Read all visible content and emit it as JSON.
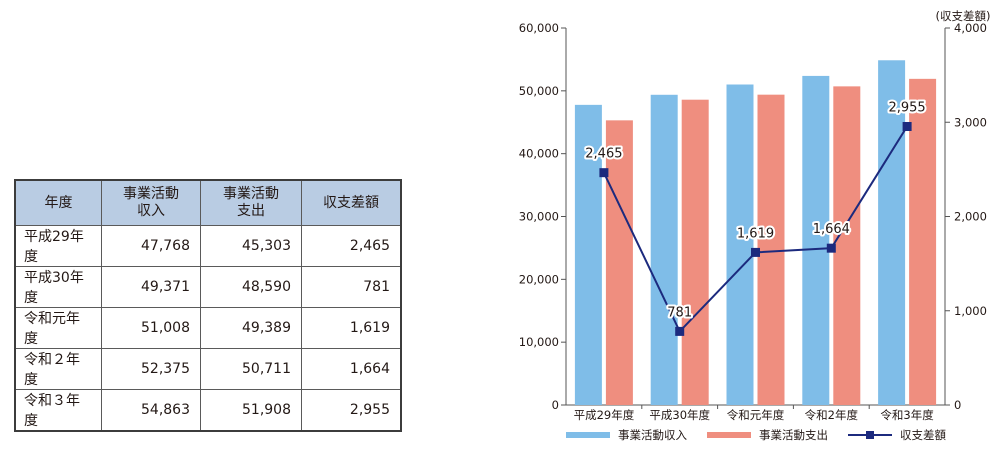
{
  "table": {
    "headers": [
      "年度",
      "事業活動\n収入",
      "事業活動\n支出",
      "収支差額"
    ],
    "rows": [
      [
        "平成29年度",
        "47,768",
        "45,303",
        "2,465"
      ],
      [
        "平成30年度",
        "49,371",
        "48,590",
        "781"
      ],
      [
        "令和元年度",
        "51,008",
        "49,389",
        "1,619"
      ],
      [
        "令和２年度",
        "52,375",
        "50,711",
        "1,664"
      ],
      [
        "令和３年度",
        "54,863",
        "51,908",
        "2,955"
      ]
    ]
  },
  "chart_data": {
    "type": "bar",
    "categories": [
      "平成29年度",
      "平成30年度",
      "令和元年度",
      "令和2年度",
      "令和3年度"
    ],
    "series": [
      {
        "name": "事業活動収入",
        "type": "bar",
        "axis": "left",
        "color": "#7fbde8",
        "values": [
          47768,
          49371,
          51008,
          52375,
          54863
        ]
      },
      {
        "name": "事業活動支出",
        "type": "bar",
        "axis": "left",
        "color": "#ef8e7f",
        "values": [
          45303,
          48590,
          49389,
          50711,
          51908
        ]
      },
      {
        "name": "収支差額",
        "type": "line",
        "axis": "right",
        "color": "#1c2a7e",
        "values": [
          2465,
          781,
          1619,
          1664,
          2955
        ]
      }
    ],
    "left_axis": {
      "ylim": [
        0,
        60000
      ],
      "ticks": [
        "0",
        "10,000",
        "20,000",
        "30,000",
        "40,000",
        "50,000",
        "60,000"
      ]
    },
    "right_axis": {
      "ylim": [
        0,
        4000
      ],
      "ticks": [
        "0",
        "1,000",
        "2,000",
        "3,000",
        "4,000"
      ],
      "label": "(収支差額)"
    },
    "data_labels": [
      "2,465",
      "781",
      "1,619",
      "1,664",
      "2,955"
    ],
    "legend_position": "bottom"
  }
}
